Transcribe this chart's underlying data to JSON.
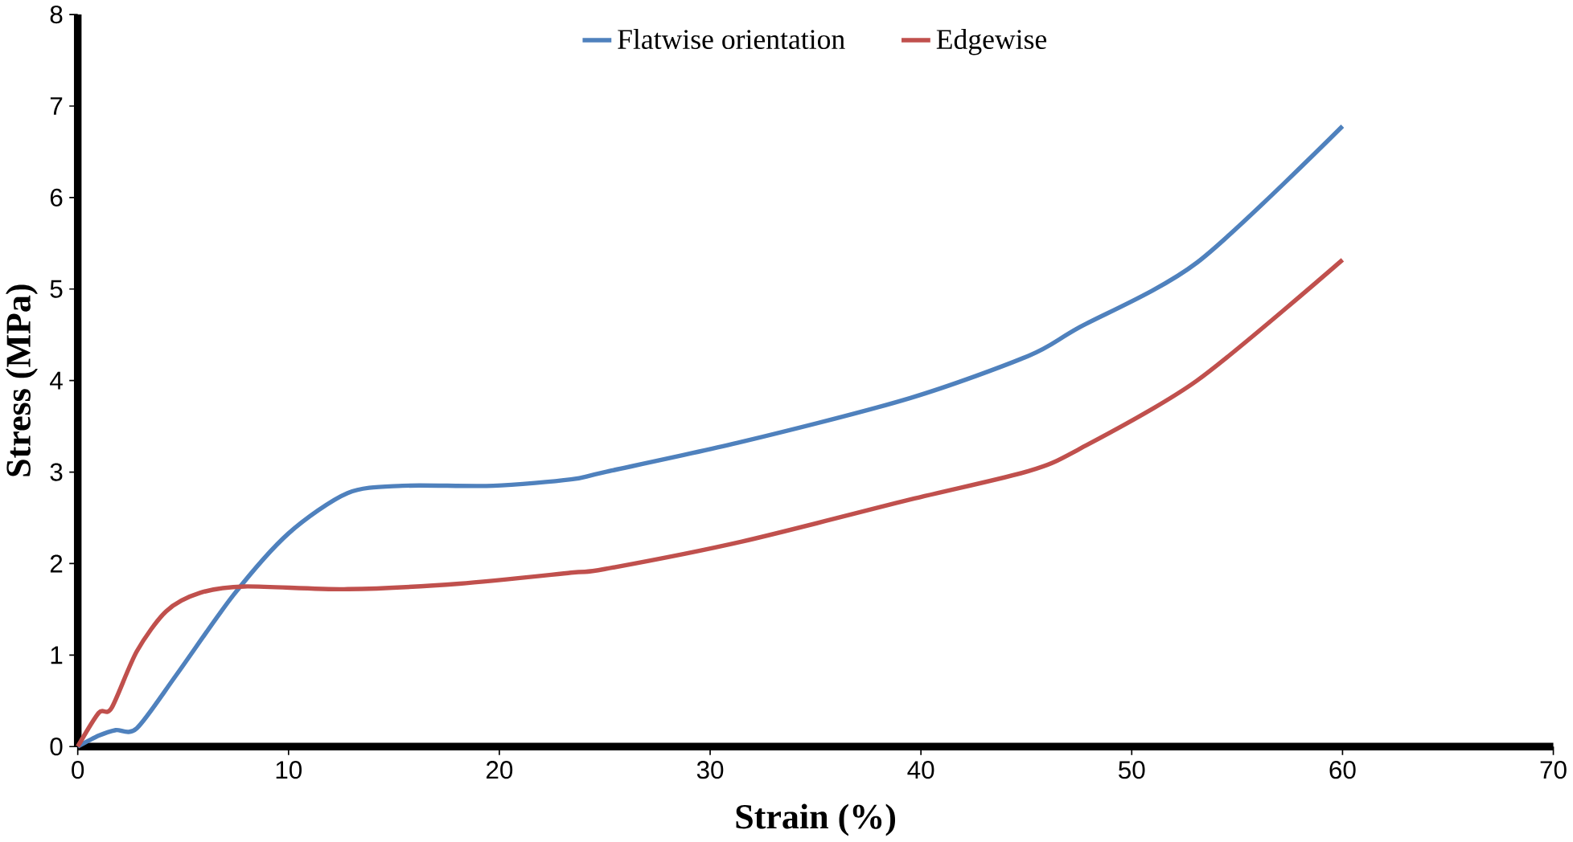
{
  "chart_data": {
    "type": "line",
    "xlabel": "Strain (%)",
    "ylabel": "Stress (MPa)",
    "xlim": [
      0,
      70
    ],
    "ylim": [
      0,
      8
    ],
    "xticks": [
      0,
      10,
      20,
      30,
      40,
      50,
      60,
      70
    ],
    "yticks": [
      0,
      1,
      2,
      3,
      4,
      5,
      6,
      7,
      8
    ],
    "grid": false,
    "legend": "top",
    "marker": "none",
    "line_style": "solid",
    "series": [
      {
        "name": "Flatwise orientation",
        "color": "#4f81bd",
        "x": [
          0,
          1.0,
          1.8,
          2.8,
          4.7,
          7.4,
          10.0,
          12.8,
          15.4,
          19.7,
          23.4,
          25,
          31.5,
          39.5,
          45.1,
          47.5,
          53.1,
          60
        ],
        "values": [
          0,
          0.12,
          0.18,
          0.2,
          0.79,
          1.66,
          2.33,
          2.77,
          2.85,
          2.85,
          2.92,
          3.0,
          3.33,
          3.81,
          4.27,
          4.58,
          5.29,
          6.78
        ]
      },
      {
        "name": "Edgewise",
        "color": "#c0504d",
        "x": [
          0,
          1.0,
          1.6,
          2.8,
          4.2,
          5.8,
          7.9,
          12.8,
          18.1,
          23.4,
          25,
          31.5,
          39.5,
          45.1,
          47.5,
          53.1,
          60
        ],
        "values": [
          0,
          0.37,
          0.42,
          1.04,
          1.48,
          1.68,
          1.75,
          1.72,
          1.78,
          1.9,
          1.94,
          2.24,
          2.7,
          3.01,
          3.25,
          4.0,
          5.32
        ]
      }
    ]
  }
}
